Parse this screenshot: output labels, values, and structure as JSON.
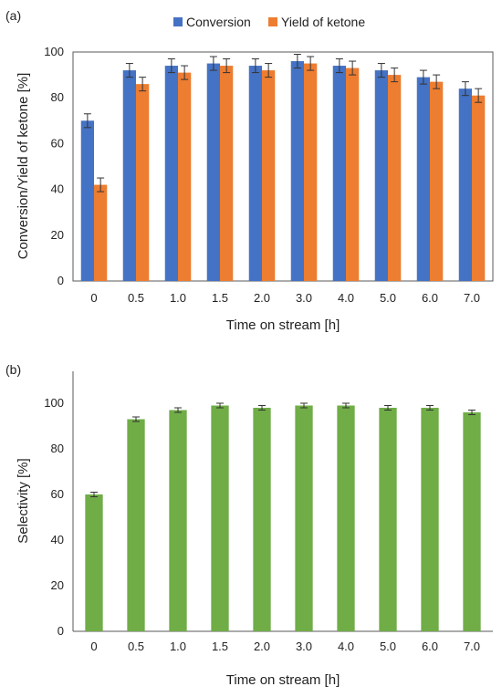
{
  "chart_data": [
    {
      "panel_label": "(a)",
      "type": "bar",
      "categories": [
        "0",
        "0.5",
        "1.0",
        "1.5",
        "2.0",
        "3.0",
        "4.0",
        "5.0",
        "6.0",
        "7.0"
      ],
      "series": [
        {
          "name": "Conversion",
          "color": "#4472c4",
          "values": [
            70,
            92,
            94,
            95,
            94,
            96,
            94,
            92,
            89,
            84
          ],
          "errors": [
            3,
            3,
            3,
            3,
            3,
            3,
            3,
            3,
            3,
            3
          ]
        },
        {
          "name": "Yield of ketone",
          "color": "#ed7d31",
          "values": [
            42,
            86,
            91,
            94,
            92,
            95,
            93,
            90,
            87,
            81
          ],
          "errors": [
            3,
            3,
            3,
            3,
            3,
            3,
            3,
            3,
            3,
            3
          ]
        }
      ],
      "xlabel": "Time on stream [h]",
      "ylabel": "Conversion/Yield of ketone [%]",
      "ylim": [
        0,
        100
      ],
      "yticks": [
        0,
        20,
        40,
        60,
        80,
        100
      ],
      "grid": false,
      "legend": "top"
    },
    {
      "panel_label": "(b)",
      "type": "bar",
      "categories": [
        "0",
        "0.5",
        "1.0",
        "1.5",
        "2.0",
        "3.0",
        "4.0",
        "5.0",
        "6.0",
        "7.0"
      ],
      "series": [
        {
          "name": "",
          "color": "#70ad47",
          "values": [
            60,
            93,
            97,
            99,
            98,
            99,
            99,
            98,
            98,
            96
          ],
          "errors": [
            1,
            1,
            1,
            1,
            1,
            1,
            1,
            1,
            1,
            1
          ]
        }
      ],
      "xlabel": "Time on stream [h]",
      "ylabel": "Selectivity [%]",
      "ylim": [
        0,
        100
      ],
      "yticks": [
        0,
        20,
        40,
        60,
        80,
        100
      ],
      "grid": false,
      "legend": "none"
    }
  ]
}
